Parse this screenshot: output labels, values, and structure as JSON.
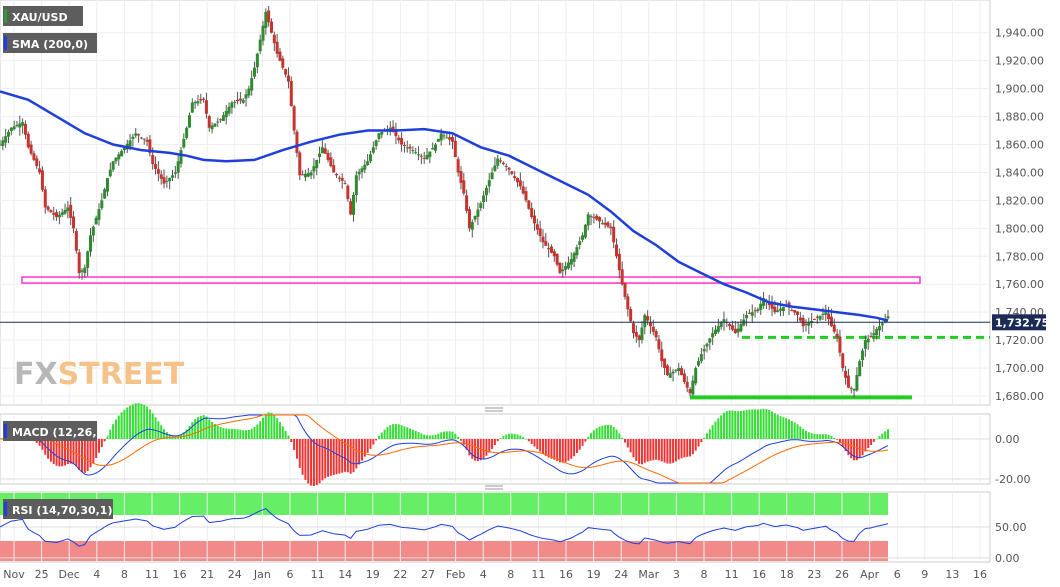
{
  "chart_data": [
    {
      "type": "candlestick",
      "symbol": "XAU/USD",
      "indicator": "SMA (200,0)",
      "last_price": 1732.75,
      "last_price_label": "1,732.75",
      "ylim": [
        1675,
        1962
      ],
      "y_ticks": [
        1680,
        1700,
        1720,
        1740,
        1760,
        1780,
        1800,
        1820,
        1840,
        1860,
        1880,
        1900,
        1920,
        1940
      ],
      "y_tick_labels": [
        "1,680.00",
        "1,700.00",
        "1,720.00",
        "1,740.00",
        "1,760.00",
        "1,780.00",
        "1,800.00",
        "1,820.00",
        "1,840.00",
        "1,860.00",
        "1,880.00",
        "1,900.00",
        "1,920.00",
        "1,940.00"
      ],
      "x_tick_labels": [
        "Nov",
        "25",
        "Dec",
        "4",
        "8",
        "11",
        "16",
        "21",
        "24",
        "Jan",
        "6",
        "11",
        "14",
        "19",
        "22",
        "27",
        "Feb",
        "4",
        "8",
        "11",
        "16",
        "19",
        "24",
        "Mar",
        "3",
        "8",
        "11",
        "16",
        "18",
        "23",
        "26",
        "Apr",
        "6",
        "9",
        "13",
        "16"
      ],
      "support_lines": [
        {
          "value": 1763,
          "color": "#ff33cc",
          "style": "double"
        },
        {
          "value": 1722,
          "color": "#22cc22",
          "style": "dashed"
        },
        {
          "value": 1679,
          "color": "#22cc22",
          "style": "solid"
        }
      ],
      "price_path": [
        [
          0,
          1860
        ],
        [
          2,
          1872
        ],
        [
          4,
          1876
        ],
        [
          5,
          1858
        ],
        [
          7,
          1840
        ],
        [
          8,
          1815
        ],
        [
          10,
          1808
        ],
        [
          12,
          1815
        ],
        [
          13,
          1800
        ],
        [
          14,
          1768
        ],
        [
          15,
          1772
        ],
        [
          16,
          1795
        ],
        [
          18,
          1820
        ],
        [
          19,
          1836
        ],
        [
          20,
          1848
        ],
        [
          22,
          1858
        ],
        [
          24,
          1868
        ],
        [
          26,
          1862
        ],
        [
          27,
          1846
        ],
        [
          29,
          1832
        ],
        [
          31,
          1840
        ],
        [
          32,
          1856
        ],
        [
          33,
          1872
        ],
        [
          34,
          1890
        ],
        [
          36,
          1892
        ],
        [
          37,
          1872
        ],
        [
          39,
          1878
        ],
        [
          41,
          1890
        ],
        [
          43,
          1892
        ],
        [
          44,
          1900
        ],
        [
          45,
          1915
        ],
        [
          46,
          1935
        ],
        [
          47,
          1955
        ],
        [
          49,
          1925
        ],
        [
          51,
          1905
        ],
        [
          52,
          1870
        ],
        [
          53,
          1838
        ],
        [
          55,
          1840
        ],
        [
          57,
          1858
        ],
        [
          59,
          1840
        ],
        [
          61,
          1832
        ],
        [
          62,
          1810
        ],
        [
          63,
          1838
        ],
        [
          65,
          1848
        ],
        [
          67,
          1868
        ],
        [
          69,
          1872
        ],
        [
          71,
          1860
        ],
        [
          73,
          1856
        ],
        [
          75,
          1850
        ],
        [
          77,
          1860
        ],
        [
          78,
          1868
        ],
        [
          80,
          1862
        ],
        [
          81,
          1840
        ],
        [
          82,
          1825
        ],
        [
          83,
          1800
        ],
        [
          85,
          1818
        ],
        [
          87,
          1840
        ],
        [
          88,
          1850
        ],
        [
          90,
          1842
        ],
        [
          92,
          1830
        ],
        [
          93,
          1820
        ],
        [
          94,
          1808
        ],
        [
          96,
          1790
        ],
        [
          98,
          1780
        ],
        [
          99,
          1768
        ],
        [
          101,
          1778
        ],
        [
          103,
          1795
        ],
        [
          104,
          1810
        ],
        [
          106,
          1805
        ],
        [
          108,
          1800
        ],
        [
          109,
          1780
        ],
        [
          110,
          1760
        ],
        [
          111,
          1742
        ],
        [
          112,
          1725
        ],
        [
          113,
          1720
        ],
        [
          114,
          1738
        ],
        [
          116,
          1722
        ],
        [
          117,
          1705
        ],
        [
          118,
          1695
        ],
        [
          120,
          1700
        ],
        [
          121,
          1690
        ],
        [
          122,
          1682
        ],
        [
          123,
          1700
        ],
        [
          124,
          1710
        ],
        [
          126,
          1725
        ],
        [
          128,
          1735
        ],
        [
          129,
          1730
        ],
        [
          130,
          1725
        ],
        [
          132,
          1738
        ],
        [
          134,
          1742
        ],
        [
          135,
          1750
        ],
        [
          137,
          1740
        ],
        [
          139,
          1745
        ],
        [
          141,
          1738
        ],
        [
          142,
          1730
        ],
        [
          144,
          1735
        ],
        [
          146,
          1740
        ],
        [
          147,
          1730
        ],
        [
          148,
          1722
        ],
        [
          149,
          1700
        ],
        [
          150,
          1686
        ],
        [
          151,
          1685
        ],
        [
          152,
          1705
        ],
        [
          153,
          1720
        ],
        [
          154,
          1722
        ],
        [
          155,
          1728
        ],
        [
          156,
          1732
        ],
        [
          157,
          1737
        ]
      ],
      "sma_path": [
        [
          0,
          1898
        ],
        [
          5,
          1892
        ],
        [
          10,
          1880
        ],
        [
          15,
          1868
        ],
        [
          20,
          1860
        ],
        [
          25,
          1856
        ],
        [
          30,
          1854
        ],
        [
          33,
          1852
        ],
        [
          36,
          1849
        ],
        [
          40,
          1848
        ],
        [
          45,
          1849
        ],
        [
          50,
          1856
        ],
        [
          55,
          1862
        ],
        [
          60,
          1867
        ],
        [
          65,
          1870
        ],
        [
          70,
          1870
        ],
        [
          75,
          1871
        ],
        [
          80,
          1868
        ],
        [
          85,
          1858
        ],
        [
          90,
          1852
        ],
        [
          95,
          1842
        ],
        [
          100,
          1832
        ],
        [
          104,
          1824
        ],
        [
          108,
          1812
        ],
        [
          112,
          1798
        ],
        [
          116,
          1788
        ],
        [
          120,
          1776
        ],
        [
          124,
          1768
        ],
        [
          128,
          1760
        ],
        [
          132,
          1754
        ],
        [
          136,
          1747
        ],
        [
          140,
          1744
        ],
        [
          144,
          1742
        ],
        [
          148,
          1740
        ],
        [
          152,
          1738
        ],
        [
          155,
          1736
        ],
        [
          157,
          1734
        ]
      ]
    },
    {
      "type": "line",
      "indicator": "MACD (12,26,9)",
      "ylim": [
        -22,
        12
      ],
      "y_ticks": [
        0,
        -20
      ],
      "y_tick_labels": [
        "0.00",
        "-20.00"
      ]
    },
    {
      "type": "line",
      "indicator": "RSI (14,70,30,1)",
      "ylim": [
        -5,
        105
      ],
      "y_ticks": [
        50,
        0
      ],
      "y_tick_labels": [
        "50.00",
        "0.00"
      ],
      "overbought": 70,
      "oversold": 30
    }
  ],
  "watermark": {
    "part1": "FX",
    "part2": "STREET"
  }
}
